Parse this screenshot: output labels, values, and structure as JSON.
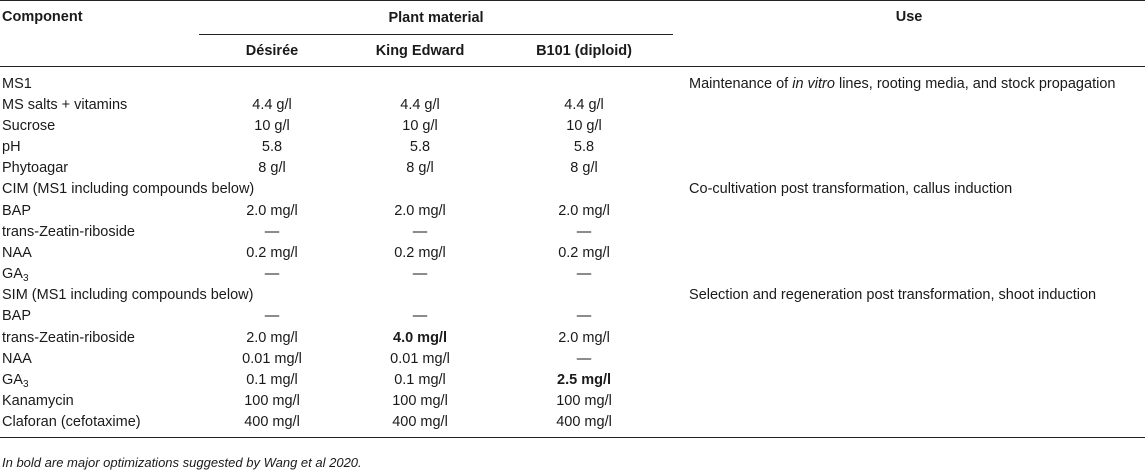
{
  "header": {
    "component": "Component",
    "plant_material": "Plant material",
    "use": "Use",
    "varieties": [
      "Désirée",
      "King Edward",
      "B101 (diploid)"
    ]
  },
  "rows": [
    {
      "name": "MS1",
      "v": [
        "",
        "",
        ""
      ],
      "use": "Maintenance of in vitro lines, rooting media, and stock propagation",
      "use_pre": "Maintenance of ",
      "use_em": "in vitro",
      "use_post": " lines, rooting media, and stock propagation"
    },
    {
      "name": "MS salts + vitamins",
      "v": [
        "4.4 g/l",
        "4.4 g/l",
        "4.4 g/l"
      ]
    },
    {
      "name": "Sucrose",
      "v": [
        "10 g/l",
        "10 g/l",
        "10 g/l"
      ]
    },
    {
      "name": "pH",
      "v": [
        "5.8",
        "5.8",
        "5.8"
      ]
    },
    {
      "name": "Phytoagar",
      "v": [
        "8 g/l",
        "8 g/l",
        "8 g/l"
      ]
    },
    {
      "name": "CIM (MS1 including compounds below)",
      "v": [
        "",
        "",
        ""
      ],
      "use": "Co-cultivation post transformation, callus induction"
    },
    {
      "name": "BAP",
      "v": [
        "2.0 mg/l",
        "2.0 mg/l",
        "2.0 mg/l"
      ]
    },
    {
      "name": "trans-Zeatin-riboside",
      "v": [
        "—",
        "—",
        "—"
      ]
    },
    {
      "name": "NAA",
      "v": [
        "0.2 mg/l",
        "0.2 mg/l",
        "0.2 mg/l"
      ]
    },
    {
      "name": "GA",
      "sub": "3",
      "v": [
        "—",
        "—",
        "—"
      ]
    },
    {
      "name": "SIM (MS1 including compounds below)",
      "v": [
        "",
        "",
        ""
      ],
      "use": "Selection and regeneration post transformation, shoot induction"
    },
    {
      "name": "BAP",
      "v": [
        "—",
        "—",
        "—"
      ]
    },
    {
      "name": "trans-Zeatin-riboside",
      "v": [
        "2.0 mg/l",
        "4.0 mg/l",
        "2.0 mg/l"
      ],
      "bold": [
        false,
        true,
        false
      ]
    },
    {
      "name": "NAA",
      "v": [
        "0.01 mg/l",
        "0.01 mg/l",
        "—"
      ]
    },
    {
      "name": "GA",
      "sub": "3",
      "v": [
        "0.1 mg/l",
        "0.1 mg/l",
        "2.5 mg/l"
      ],
      "bold": [
        false,
        false,
        true
      ]
    },
    {
      "name": "Kanamycin",
      "v": [
        "100 mg/l",
        "100 mg/l",
        "100 mg/l"
      ]
    },
    {
      "name": "Claforan (cefotaxime)",
      "v": [
        "400 mg/l",
        "400 mg/l",
        "400 mg/l"
      ]
    }
  ],
  "footnote": "In bold are major optimizations suggested by Wang et al 2020."
}
